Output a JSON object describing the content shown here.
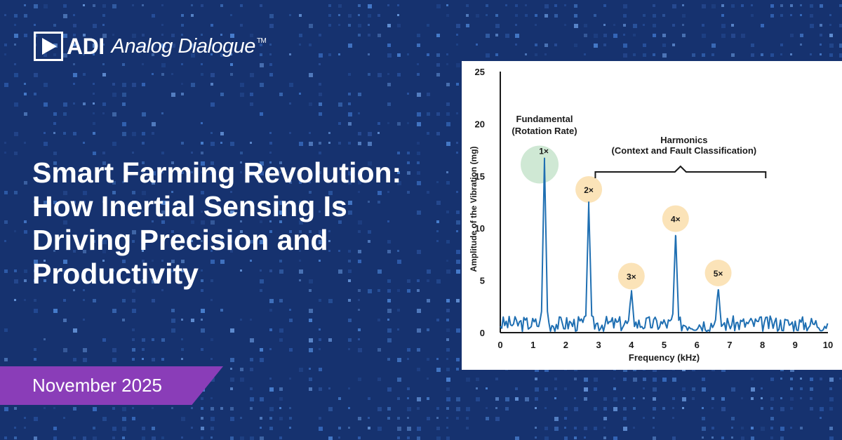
{
  "brand": {
    "company": "ADI",
    "publication": "Analog Dialogue",
    "trademark": "TM"
  },
  "headline": {
    "lines": [
      "Smart Farming Revolution:",
      "How Inertial Sensing Is",
      "Driving Precision and",
      "Productivity"
    ]
  },
  "date": "November 2025",
  "colors": {
    "background": "#16326f",
    "date_banner": "#8a3db8",
    "trace": "#1f6fb2",
    "fundamental_highlight": "#cfe8d4",
    "harmonic_highlight": "#fbe3b8"
  },
  "chart_data": {
    "type": "line",
    "xlabel": "Frequency (kHz)",
    "ylabel": "Amplitude of the Vibration (mg)",
    "xlim": [
      0,
      10
    ],
    "ylim": [
      0,
      25
    ],
    "x_ticks": [
      "0",
      "1",
      "2",
      "3",
      "4",
      "5",
      "6",
      "7",
      "8",
      "9",
      "10"
    ],
    "y_ticks": [
      "0",
      "5",
      "10",
      "15",
      "20",
      "25"
    ],
    "grid": false,
    "peaks": [
      {
        "label": "1×",
        "x": 1.35,
        "y": 16.3,
        "kind": "fundamental"
      },
      {
        "label": "2×",
        "x": 2.7,
        "y": 12.1,
        "kind": "harmonic"
      },
      {
        "label": "3×",
        "x": 4.0,
        "y": 3.8,
        "kind": "harmonic"
      },
      {
        "label": "4×",
        "x": 5.35,
        "y": 9.3,
        "kind": "harmonic"
      },
      {
        "label": "5×",
        "x": 6.65,
        "y": 4.1,
        "kind": "harmonic"
      }
    ],
    "noise_floor_max": 1.5,
    "annotations": {
      "fundamental": [
        "Fundamental",
        "(Rotation Rate)"
      ],
      "harmonics": [
        "Harmonics",
        "(Context and Fault Classification)"
      ],
      "harmonics_range": [
        2.9,
        8.1
      ]
    }
  }
}
